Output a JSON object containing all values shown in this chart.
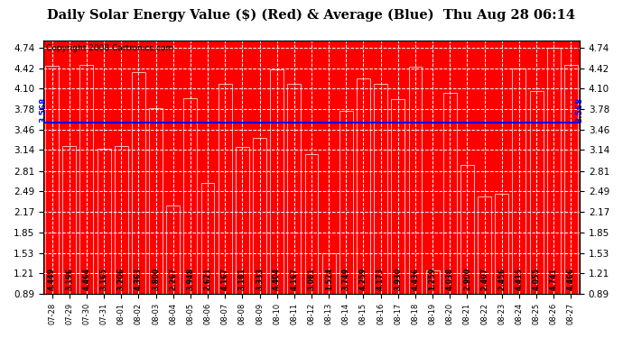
{
  "title": "Daily Solar Energy Value ($) (Red) & Average (Blue)  Thu Aug 28 06:14",
  "copyright": "Copyright 2008 Cartronics.com",
  "average_label": "3.568",
  "average_value": 3.568,
  "bar_color": "#FF0000",
  "average_line_color": "#0000FF",
  "background_color": "#FFFFFF",
  "plot_bg_color": "#FF0000",
  "grid_color": "#FFFFFF",
  "categories": [
    "07-28",
    "07-29",
    "07-30",
    "07-31",
    "08-01",
    "08-02",
    "08-03",
    "08-04",
    "08-05",
    "08-06",
    "08-07",
    "08-08",
    "08-09",
    "08-10",
    "08-11",
    "08-12",
    "08-13",
    "08-14",
    "08-15",
    "08-16",
    "08-17",
    "08-18",
    "08-19",
    "08-20",
    "08-21",
    "08-22",
    "08-23",
    "08-24",
    "08-25",
    "08-26",
    "08-27"
  ],
  "values": [
    4.449,
    3.196,
    4.464,
    3.165,
    3.206,
    4.363,
    3.8,
    2.267,
    3.948,
    2.621,
    4.167,
    3.181,
    3.333,
    4.404,
    4.167,
    3.081,
    1.524,
    3.749,
    4.259,
    4.173,
    3.93,
    4.436,
    1.259,
    4.038,
    2.9,
    2.407,
    2.456,
    4.415,
    4.055,
    4.741,
    4.466
  ],
  "ylim_min": 0.89,
  "ylim_max": 4.85,
  "yticks": [
    0.89,
    1.21,
    1.53,
    1.85,
    2.17,
    2.49,
    2.81,
    3.14,
    3.46,
    3.78,
    4.1,
    4.42,
    4.74
  ],
  "ylabel_fontsize": 7.5,
  "title_fontsize": 10.5,
  "copyright_fontsize": 6.5,
  "bar_label_fontsize": 5.8,
  "xlabel_fontsize": 6.0,
  "avg_label_fontsize": 6.5
}
